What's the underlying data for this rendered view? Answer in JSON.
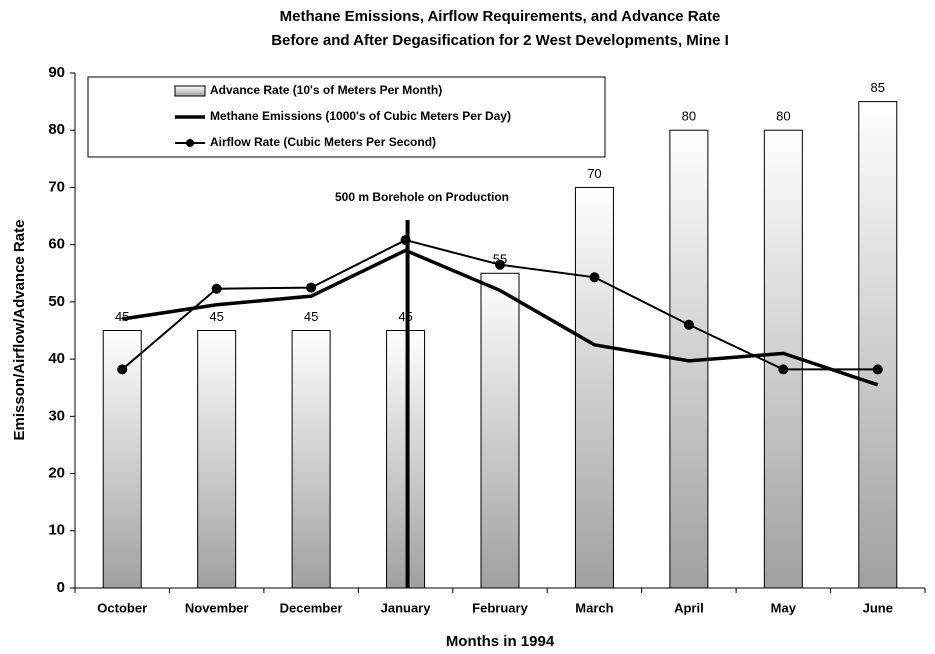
{
  "chart_data": {
    "type": "bar-line",
    "title": "Methane Emissions, Airflow Requirements, and Advance Rate",
    "subtitle": "Before and After Degasification for 2 West Developments, Mine I",
    "x_label": "Months in 1994",
    "y_label": "Emisson/Airflow/Advance Rate",
    "categories": [
      "October",
      "November",
      "December",
      "January",
      "February",
      "March",
      "April",
      "May",
      "June"
    ],
    "series": [
      {
        "name": "Advance Rate (10's of Meters Per Month)",
        "kind": "bar",
        "color": "#a0a0a0",
        "values": [
          45,
          45,
          45,
          45,
          55,
          70,
          80,
          80,
          85
        ]
      },
      {
        "name": "Methane Emissions (1000's of Cubic Meters Per Day)",
        "kind": "line",
        "color": "#000000",
        "values": [
          47,
          49.5,
          51,
          59,
          52,
          42.5,
          39.7,
          41,
          35.5
        ]
      },
      {
        "name": "Airflow Rate (Cubic Meters Per Second)",
        "kind": "line-marker",
        "color": "#000000",
        "values": [
          38.2,
          52.3,
          52.5,
          60.8,
          56.5,
          54.3,
          46,
          38.2,
          38.2
        ]
      }
    ],
    "annotation": "500 m Borehole on Production",
    "ylim": [
      0,
      90
    ],
    "yticks": [
      0,
      10,
      20,
      30,
      40,
      50,
      60,
      70,
      80,
      90
    ],
    "grid": false,
    "legend": "top-left"
  }
}
